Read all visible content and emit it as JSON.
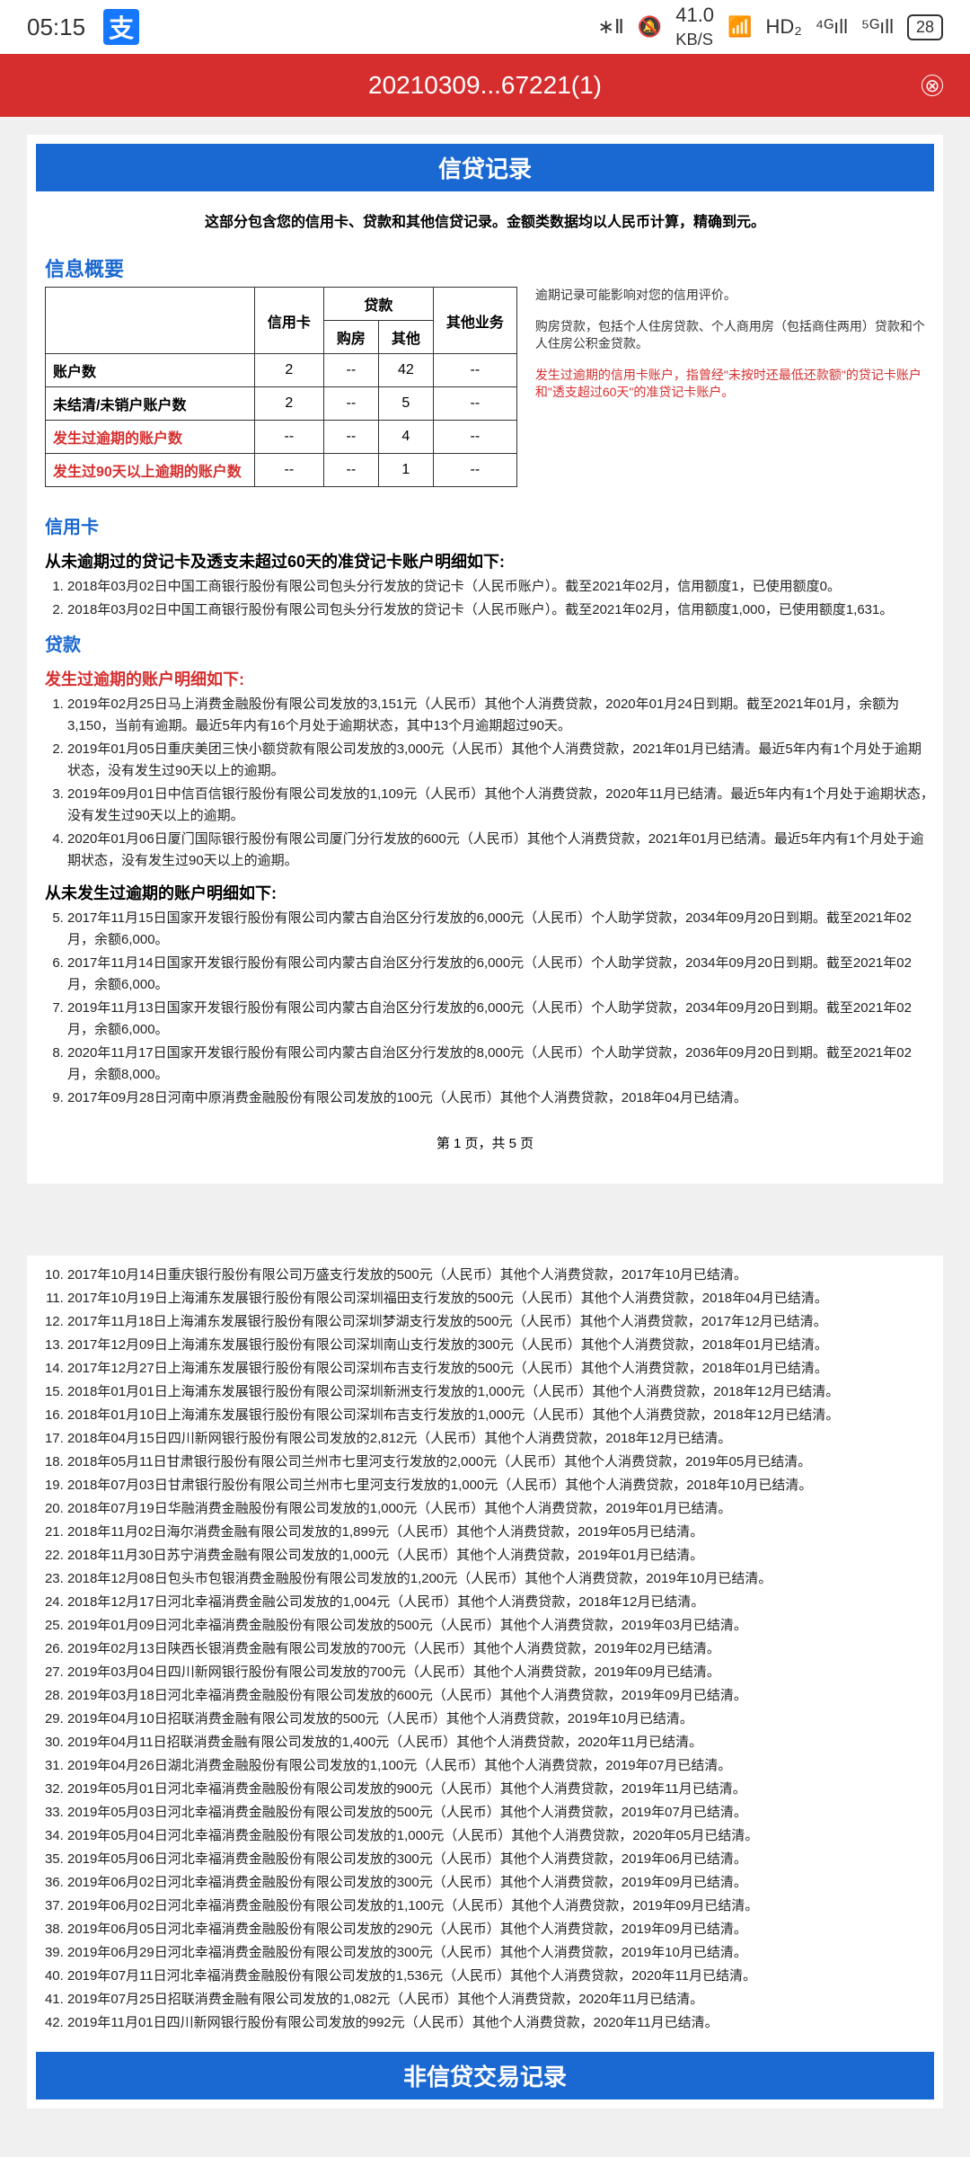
{
  "status": {
    "time": "05:15",
    "bt": "∗Ⅱ",
    "mute": "🔕",
    "speed_val": "41.0",
    "speed_unit": "KB/S",
    "wifi": "📶",
    "hd": "HD₂",
    "sig4g": "⁴ᴳıll",
    "sig5g": "⁵ᴳıll",
    "battery": "28"
  },
  "header": {
    "title": "20210309...67221(1)",
    "icon": "⊗"
  },
  "banner1": "信贷记录",
  "banner1_desc": "这部分包含您的信用卡、贷款和其他信贷记录。金额类数据均以人民币计算，精确到元。",
  "overview_title": "信息概要",
  "table": {
    "h_card": "信用卡",
    "h_loan": "贷款",
    "h_house": "购房",
    "h_other": "其他",
    "h_biz": "其他业务",
    "rows": [
      {
        "label": "账户数",
        "card": "2",
        "house": "--",
        "other": "42",
        "biz": "--",
        "red": false
      },
      {
        "label": "未结清/未销户账户数",
        "card": "2",
        "house": "--",
        "other": "5",
        "biz": "--",
        "red": false
      },
      {
        "label": "发生过逾期的账户数",
        "card": "--",
        "house": "--",
        "other": "4",
        "biz": "--",
        "red": true
      },
      {
        "label": "发生过90天以上逾期的账户数",
        "card": "--",
        "house": "--",
        "other": "1",
        "biz": "--",
        "red": true
      }
    ]
  },
  "notes": {
    "n1": "逾期记录可能影响对您的信用评价。",
    "n2": "购房贷款，包括个人住房贷款、个人商用房（包括商住两用）贷款和个人住房公积金贷款。",
    "n3": "发生过逾期的信用卡账户，指曾经\"未按时还最低还款额\"的贷记卡账户和\"透支超过60天\"的准贷记卡账户。"
  },
  "credit_card": {
    "title": "信用卡",
    "sub": "从未逾期过的贷记卡及透支未超过60天的准贷记卡账户明细如下:",
    "items": [
      "2018年03月02日中国工商银行股份有限公司包头分行发放的贷记卡（人民币账户）。截至2021年02月，信用额度1，已使用额度0。",
      "2018年03月02日中国工商银行股份有限公司包头分行发放的贷记卡（人民币账户）。截至2021年02月，信用额度1,000，已使用额度1,631。"
    ]
  },
  "loan": {
    "title": "贷款",
    "overdue_title": "发生过逾期的账户明细如下:",
    "overdue": [
      "2019年02月25日马上消费金融股份有限公司发放的3,151元（人民币）其他个人消费贷款，2020年01月24日到期。截至2021年01月，余额为3,150，当前有逾期。最近5年内有16个月处于逾期状态，其中13个月逾期超过90天。",
      "2019年01月05日重庆美团三快小额贷款有限公司发放的3,000元（人民币）其他个人消费贷款，2021年01月已结清。最近5年内有1个月处于逾期状态，没有发生过90天以上的逾期。",
      "2019年09月01日中信百信银行股份有限公司发放的1,109元（人民币）其他个人消费贷款，2020年11月已结清。最近5年内有1个月处于逾期状态，没有发生过90天以上的逾期。",
      "2020年01月06日厦门国际银行股份有限公司厦门分行发放的600元（人民币）其他个人消费贷款，2021年01月已结清。最近5年内有1个月处于逾期状态，没有发生过90天以上的逾期。"
    ],
    "normal_title": "从未发生过逾期的账户明细如下:",
    "normal": [
      "2017年11月15日国家开发银行股份有限公司内蒙古自治区分行发放的6,000元（人民币）个人助学贷款，2034年09月20日到期。截至2021年02月，余额6,000。",
      "2017年11月14日国家开发银行股份有限公司内蒙古自治区分行发放的6,000元（人民币）个人助学贷款，2034年09月20日到期。截至2021年02月，余额6,000。",
      "2019年11月13日国家开发银行股份有限公司内蒙古自治区分行发放的6,000元（人民币）个人助学贷款，2034年09月20日到期。截至2021年02月，余额6,000。",
      "2020年11月17日国家开发银行股份有限公司内蒙古自治区分行发放的8,000元（人民币）个人助学贷款，2036年09月20日到期。截至2021年02月，余额8,000。",
      "2017年09月28日河南中原消费金融股份有限公司发放的100元（人民币）其他个人消费贷款，2018年04月已结清。"
    ]
  },
  "page_info": "第 1 页，共 5 页",
  "page2": [
    "2017年10月14日重庆银行股份有限公司万盛支行发放的500元（人民币）其他个人消费贷款，2017年10月已结清。",
    "2017年10月19日上海浦东发展银行股份有限公司深圳福田支行发放的500元（人民币）其他个人消费贷款，2018年04月已结清。",
    "2017年11月18日上海浦东发展银行股份有限公司深圳梦湖支行发放的500元（人民币）其他个人消费贷款，2017年12月已结清。",
    "2017年12月09日上海浦东发展银行股份有限公司深圳南山支行发放的300元（人民币）其他个人消费贷款，2018年01月已结清。",
    "2017年12月27日上海浦东发展银行股份有限公司深圳布吉支行发放的500元（人民币）其他个人消费贷款，2018年01月已结清。",
    "2018年01月01日上海浦东发展银行股份有限公司深圳新洲支行发放的1,000元（人民币）其他个人消费贷款，2018年12月已结清。",
    "2018年01月10日上海浦东发展银行股份有限公司深圳布吉支行发放的1,000元（人民币）其他个人消费贷款，2018年12月已结清。",
    "2018年04月15日四川新网银行股份有限公司发放的2,812元（人民币）其他个人消费贷款，2018年12月已结清。",
    "2018年05月11日甘肃银行股份有限公司兰州市七里河支行发放的2,000元（人民币）其他个人消费贷款，2019年05月已结清。",
    "2018年07月03日甘肃银行股份有限公司兰州市七里河支行发放的1,000元（人民币）其他个人消费贷款，2018年10月已结清。",
    "2018年07月19日华融消费金融股份有限公司发放的1,000元（人民币）其他个人消费贷款，2019年01月已结清。",
    "2018年11月02日海尔消费金融有限公司发放的1,899元（人民币）其他个人消费贷款，2019年05月已结清。",
    "2018年11月30日苏宁消费金融有限公司发放的1,000元（人民币）其他个人消费贷款，2019年01月已结清。",
    "2018年12月08日包头市包银消费金融股份有限公司发放的1,200元（人民币）其他个人消费贷款，2019年10月已结清。",
    "2018年12月17日河北幸福消费金融公司发放的1,004元（人民币）其他个人消费贷款，2018年12月已结清。",
    "2019年01月09日河北幸福消费金融股份有限公司发放的500元（人民币）其他个人消费贷款，2019年03月已结清。",
    "2019年02月13日陕西长银消费金融有限公司发放的700元（人民币）其他个人消费贷款，2019年02月已结清。",
    "2019年03月04日四川新网银行股份有限公司发放的700元（人民币）其他个人消费贷款，2019年09月已结清。",
    "2019年03月18日河北幸福消费金融股份有限公司发放的600元（人民币）其他个人消费贷款，2019年09月已结清。",
    "2019年04月10日招联消费金融有限公司发放的500元（人民币）其他个人消费贷款，2019年10月已结清。",
    "2019年04月11日招联消费金融有限公司发放的1,400元（人民币）其他个人消费贷款，2020年11月已结清。",
    "2019年04月26日湖北消费金融股份有限公司发放的1,100元（人民币）其他个人消费贷款，2019年07月已结清。",
    "2019年05月01日河北幸福消费金融股份有限公司发放的900元（人民币）其他个人消费贷款，2019年11月已结清。",
    "2019年05月03日河北幸福消费金融股份有限公司发放的500元（人民币）其他个人消费贷款，2019年07月已结清。",
    "2019年05月04日河北幸福消费金融股份有限公司发放的1,000元（人民币）其他个人消费贷款，2020年05月已结清。",
    "2019年05月06日河北幸福消费金融股份有限公司发放的300元（人民币）其他个人消费贷款，2019年06月已结清。",
    "2019年06月02日河北幸福消费金融股份有限公司发放的300元（人民币）其他个人消费贷款，2019年09月已结清。",
    "2019年06月02日河北幸福消费金融股份有限公司发放的1,100元（人民币）其他个人消费贷款，2019年09月已结清。",
    "2019年06月05日河北幸福消费金融股份有限公司发放的290元（人民币）其他个人消费贷款，2019年09月已结清。",
    "2019年06月29日河北幸福消费金融股份有限公司发放的300元（人民币）其他个人消费贷款，2019年10月已结清。",
    "2019年07月11日河北幸福消费金融股份有限公司发放的1,536元（人民币）其他个人消费贷款，2020年11月已结清。",
    "2019年07月25日招联消费金融有限公司发放的1,082元（人民币）其他个人消费贷款，2020年11月已结清。",
    "2019年11月01日四川新网银行股份有限公司发放的992元（人民币）其他个人消费贷款，2020年11月已结清。"
  ],
  "banner2": "非信贷交易记录"
}
